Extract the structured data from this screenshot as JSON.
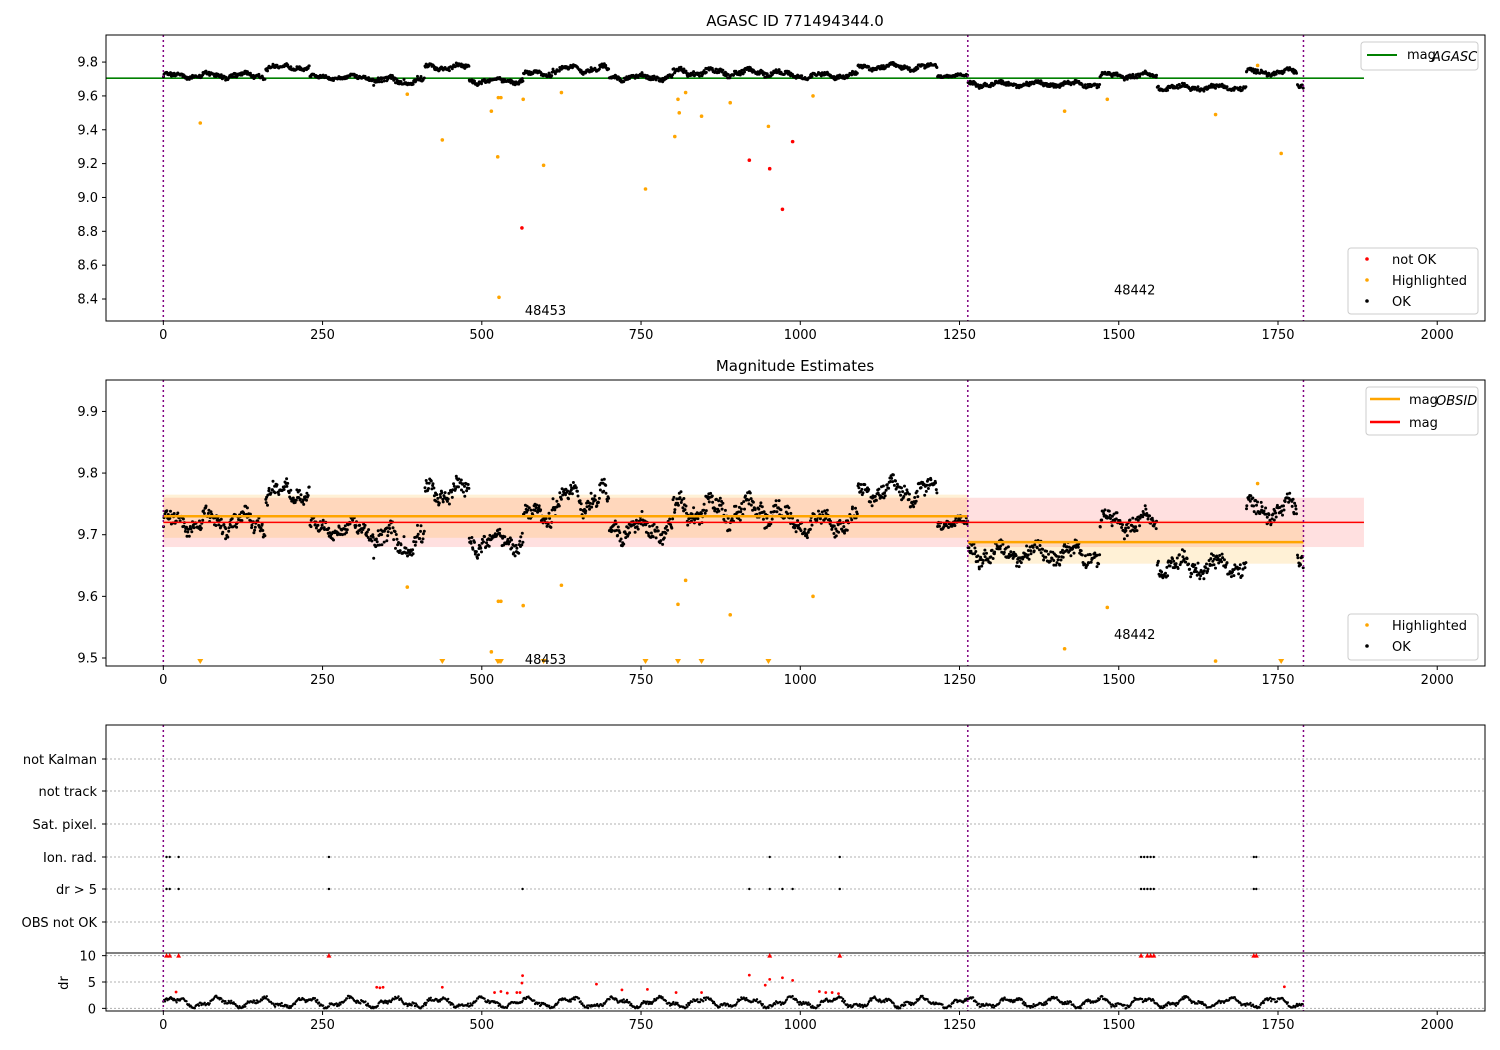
{
  "chart_data": [
    {
      "type": "scatter",
      "title": "AGASC ID 771494344.0",
      "xlim": [
        -90,
        2075
      ],
      "ylim": [
        8.27,
        9.96
      ],
      "xticks": [
        0,
        250,
        500,
        750,
        1000,
        1250,
        1500,
        1750,
        2000
      ],
      "yticks": [
        8.4,
        8.6,
        8.8,
        9.0,
        9.2,
        9.4,
        9.6,
        9.8
      ],
      "grid": false,
      "obsid_boundaries": [
        0,
        1263,
        1790
      ],
      "obsid_labels": [
        {
          "text": "48453",
          "x": 600,
          "y": 8.33
        },
        {
          "text": "48442",
          "x": 1525,
          "y": 8.45
        }
      ],
      "reference_lines": [
        {
          "name": "mag_AGASC",
          "y": 9.705,
          "x_range": [
            -90,
            1885
          ],
          "color": "#008000"
        }
      ],
      "legend_lines": [
        {
          "label": "mag",
          "sub": "AGASC",
          "color": "#008000"
        }
      ],
      "legend_markers": [
        {
          "label": "not OK",
          "color": "#ff0000"
        },
        {
          "label": "Highlighted",
          "color": "#ffa500"
        },
        {
          "label": "OK",
          "color": "#000000"
        }
      ],
      "legend_placement": [
        "top-right",
        "bottom-right"
      ],
      "series": [
        {
          "name": "not OK",
          "color": "#ff0000",
          "points": [
            [
              563,
              8.82
            ],
            [
              920,
              9.22
            ],
            [
              952,
              9.17
            ],
            [
              972,
              8.93
            ],
            [
              988,
              9.33
            ]
          ]
        },
        {
          "name": "Highlighted",
          "color": "#ffa500",
          "points": [
            [
              58,
              9.44
            ],
            [
              383,
              9.61
            ],
            [
              438,
              9.34
            ],
            [
              515,
              9.51
            ],
            [
              525,
              9.24
            ],
            [
              526,
              9.59
            ],
            [
              530,
              9.59
            ],
            [
              527,
              8.41
            ],
            [
              565,
              9.58
            ],
            [
              597,
              9.19
            ],
            [
              625,
              9.62
            ],
            [
              757,
              9.05
            ],
            [
              803,
              9.36
            ],
            [
              808,
              9.58
            ],
            [
              810,
              9.5
            ],
            [
              820,
              9.62
            ],
            [
              845,
              9.48
            ],
            [
              890,
              9.56
            ],
            [
              950,
              9.42
            ],
            [
              1020,
              9.6
            ],
            [
              1415,
              9.51
            ],
            [
              1482,
              9.58
            ],
            [
              1652,
              9.49
            ],
            [
              1718,
              9.78
            ],
            [
              1755,
              9.26
            ]
          ]
        },
        {
          "name": "OK",
          "color": "#000000",
          "segments": [
            {
              "x": [
                0,
                160
              ],
              "c": 9.72,
              "a": 0.02
            },
            {
              "x": [
                160,
                230
              ],
              "c": 9.77,
              "a": 0.02
            },
            {
              "x": [
                230,
                330
              ],
              "c": 9.71,
              "a": 0.015
            },
            {
              "x": [
                330,
                410
              ],
              "c": 9.69,
              "a": 0.025
            },
            {
              "x": [
                410,
                480
              ],
              "c": 9.77,
              "a": 0.02
            },
            {
              "x": [
                480,
                565
              ],
              "c": 9.69,
              "a": 0.02
            },
            {
              "x": [
                565,
                610
              ],
              "c": 9.73,
              "a": 0.02
            },
            {
              "x": [
                610,
                700
              ],
              "c": 9.76,
              "a": 0.025
            },
            {
              "x": [
                700,
                800
              ],
              "c": 9.71,
              "a": 0.02
            },
            {
              "x": [
                800,
                970
              ],
              "c": 9.74,
              "a": 0.025
            },
            {
              "x": [
                970,
                1090
              ],
              "c": 9.72,
              "a": 0.02
            },
            {
              "x": [
                1090,
                1215
              ],
              "c": 9.77,
              "a": 0.02
            },
            {
              "x": [
                1215,
                1263
              ],
              "c": 9.72,
              "a": 0.012
            },
            {
              "x": [
                1263,
                1470
              ],
              "c": 9.67,
              "a": 0.02
            },
            {
              "x": [
                1470,
                1560
              ],
              "c": 9.72,
              "a": 0.02
            },
            {
              "x": [
                1560,
                1700
              ],
              "c": 9.65,
              "a": 0.02
            },
            {
              "x": [
                1700,
                1780
              ],
              "c": 9.74,
              "a": 0.02
            },
            {
              "x": [
                1780,
                1790
              ],
              "c": 9.66,
              "a": 0.02
            }
          ]
        }
      ]
    },
    {
      "type": "scatter",
      "title": "Magnitude Estimates",
      "xlim": [
        -90,
        2075
      ],
      "ylim": [
        9.487,
        9.951
      ],
      "xticks": [
        0,
        250,
        500,
        750,
        1000,
        1250,
        1500,
        1750,
        2000
      ],
      "yticks": [
        9.5,
        9.6,
        9.7,
        9.8,
        9.9
      ],
      "grid": false,
      "obsid_boundaries": [
        0,
        1263,
        1790
      ],
      "obsid_labels": [
        {
          "text": "48453",
          "x": 600,
          "y": 9.497
        },
        {
          "text": "48442",
          "x": 1525,
          "y": 9.537
        }
      ],
      "bands": [
        {
          "name": "mag",
          "range": [
            0,
            1885
          ],
          "y": [
            9.68,
            9.76
          ],
          "color": "#ff0000"
        },
        {
          "name": "mag_OBSID 48453",
          "range": [
            0,
            1263
          ],
          "y": [
            9.695,
            9.765
          ],
          "color": "#ffa500"
        },
        {
          "name": "mag_OBSID 48442",
          "range": [
            1263,
            1790
          ],
          "y": [
            9.653,
            9.723
          ],
          "color": "#ffa500"
        }
      ],
      "reference_lines": [
        {
          "name": "mag",
          "y": 9.72,
          "x_range": [
            0,
            1885
          ],
          "color": "#ff0000"
        },
        {
          "name": "mag_OBSID",
          "y": 9.73,
          "x_range": [
            0,
            1263
          ],
          "color": "#ffa500"
        },
        {
          "name": "mag_OBSID",
          "y": 9.688,
          "x_range": [
            1263,
            1790
          ],
          "color": "#ffa500"
        }
      ],
      "legend_lines": [
        {
          "label": "mag",
          "sub": "OBSID",
          "color": "#ffa500"
        },
        {
          "label": "mag",
          "sub": "",
          "color": "#ff0000"
        }
      ],
      "legend_markers": [
        {
          "label": "Highlighted",
          "color": "#ffa500"
        },
        {
          "label": "OK",
          "color": "#000000"
        }
      ],
      "legend_placement": [
        "top-right",
        "bottom-right"
      ],
      "off_scale_markers_x": [
        58,
        438,
        525,
        527,
        530,
        597,
        757,
        808,
        845,
        950,
        1755
      ],
      "series": [
        {
          "name": "Highlighted",
          "color": "#ffa500",
          "points": [
            [
              383,
              9.615
            ],
            [
              515,
              9.51
            ],
            [
              526,
              9.592
            ],
            [
              530,
              9.592
            ],
            [
              565,
              9.585
            ],
            [
              625,
              9.618
            ],
            [
              808,
              9.587
            ],
            [
              820,
              9.626
            ],
            [
              890,
              9.57
            ],
            [
              1020,
              9.6
            ],
            [
              1415,
              9.515
            ],
            [
              1482,
              9.582
            ],
            [
              1652,
              9.495
            ],
            [
              1718,
              9.783
            ]
          ]
        },
        {
          "name": "OK",
          "color": "#000000",
          "segments": [
            {
              "x": [
                0,
                160
              ],
              "c": 9.72,
              "a": 0.02
            },
            {
              "x": [
                160,
                230
              ],
              "c": 9.77,
              "a": 0.02
            },
            {
              "x": [
                230,
                330
              ],
              "c": 9.71,
              "a": 0.015
            },
            {
              "x": [
                330,
                410
              ],
              "c": 9.69,
              "a": 0.025
            },
            {
              "x": [
                410,
                480
              ],
              "c": 9.77,
              "a": 0.02
            },
            {
              "x": [
                480,
                565
              ],
              "c": 9.69,
              "a": 0.02
            },
            {
              "x": [
                565,
                610
              ],
              "c": 9.73,
              "a": 0.02
            },
            {
              "x": [
                610,
                700
              ],
              "c": 9.76,
              "a": 0.025
            },
            {
              "x": [
                700,
                800
              ],
              "c": 9.71,
              "a": 0.02
            },
            {
              "x": [
                800,
                970
              ],
              "c": 9.74,
              "a": 0.025
            },
            {
              "x": [
                970,
                1090
              ],
              "c": 9.72,
              "a": 0.02
            },
            {
              "x": [
                1090,
                1215
              ],
              "c": 9.77,
              "a": 0.02
            },
            {
              "x": [
                1215,
                1263
              ],
              "c": 9.72,
              "a": 0.012
            },
            {
              "x": [
                1263,
                1470
              ],
              "c": 9.67,
              "a": 0.02
            },
            {
              "x": [
                1470,
                1560
              ],
              "c": 9.72,
              "a": 0.02
            },
            {
              "x": [
                1560,
                1700
              ],
              "c": 9.65,
              "a": 0.02
            },
            {
              "x": [
                1700,
                1780
              ],
              "c": 9.74,
              "a": 0.02
            },
            {
              "x": [
                1780,
                1790
              ],
              "c": 9.66,
              "a": 0.02
            }
          ]
        }
      ]
    },
    {
      "type": "scatter",
      "title": "",
      "xlim": [
        -90,
        2075
      ],
      "categories": [
        "not Kalman",
        "not track",
        "Sat. pixel.",
        "Ion. rad.",
        "dr > 5",
        "OBS not OK"
      ],
      "flag_points": {
        "Ion. rad.": [
          5,
          10,
          24,
          260,
          952,
          1062,
          1535,
          1540,
          1545,
          1550,
          1555,
          1712,
          1716
        ],
        "dr > 5": [
          5,
          10,
          24,
          260,
          564,
          920,
          952,
          972,
          988,
          1062,
          1535,
          1540,
          1545,
          1550,
          1555,
          1712,
          1716
        ]
      },
      "dr_axis": {
        "ylabel": "dr",
        "ylim": [
          -0.5,
          10.5
        ],
        "yticks": [
          0,
          5,
          10
        ],
        "threshold_line": 5
      },
      "dr_high_points": [
        [
          5,
          10
        ],
        [
          10,
          10
        ],
        [
          24,
          10
        ],
        [
          260,
          10
        ],
        [
          952,
          10
        ],
        [
          1062,
          10
        ],
        [
          1535,
          10
        ],
        [
          1545,
          10
        ],
        [
          1550,
          10
        ],
        [
          1555,
          10
        ],
        [
          1712,
          10
        ],
        [
          1716,
          10
        ]
      ],
      "dr_red_points": [
        [
          20,
          3.1
        ],
        [
          335,
          4
        ],
        [
          340,
          3.9
        ],
        [
          345,
          4
        ],
        [
          438,
          4
        ],
        [
          520,
          3
        ],
        [
          530,
          3.2
        ],
        [
          540,
          2.9
        ],
        [
          555,
          3
        ],
        [
          560,
          3
        ],
        [
          564,
          6.2
        ],
        [
          563,
          4.8
        ],
        [
          680,
          4.6
        ],
        [
          720,
          3.5
        ],
        [
          760,
          3.6
        ],
        [
          805,
          3
        ],
        [
          845,
          3
        ],
        [
          920,
          6.3
        ],
        [
          945,
          4.4
        ],
        [
          952,
          5.5
        ],
        [
          972,
          5.8
        ],
        [
          988,
          5.3
        ],
        [
          1030,
          3.2
        ],
        [
          1040,
          3
        ],
        [
          1050,
          3
        ],
        [
          1060,
          2.8
        ],
        [
          1760,
          4.1
        ]
      ],
      "obsid_boundaries": [
        0,
        1263,
        1790
      ],
      "xticks": [
        0,
        250,
        500,
        750,
        1000,
        1250,
        1500,
        1750,
        2000
      ]
    }
  ]
}
